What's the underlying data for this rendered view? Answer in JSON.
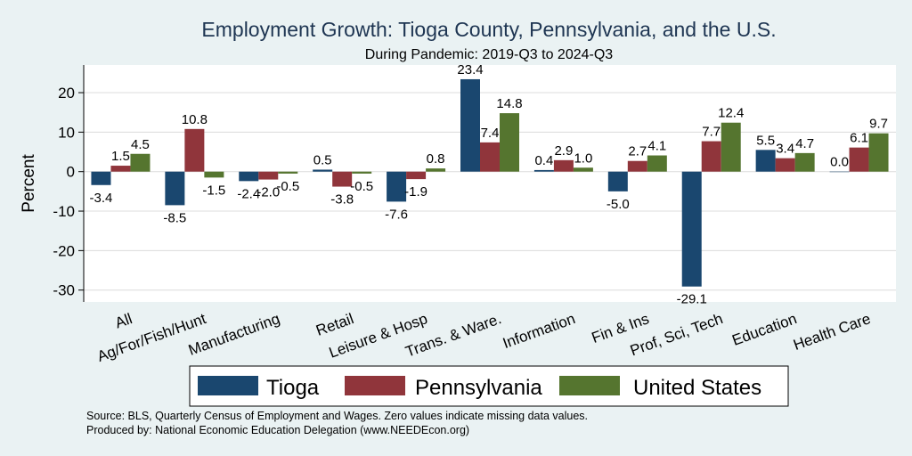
{
  "chart_data": {
    "type": "bar",
    "title": "Employment Growth: Tioga County, Pennsylvania, and the U.S.",
    "subtitle": "During Pandemic: 2019-Q3 to 2024-Q3",
    "ylabel": "Percent",
    "xlabel": "",
    "ylim": [
      -33,
      27
    ],
    "yticks": [
      20,
      10,
      0,
      -10,
      -20,
      -30
    ],
    "grid": true,
    "legend_position": "bottom",
    "categories": [
      "All",
      "Ag/For/Fish/Hunt",
      "Manufacturing",
      "Retail",
      "Leisure & Hosp",
      "Trans. & Ware.",
      "Information",
      "Fin & Ins",
      "Prof, Sci, Tech",
      "Education",
      "Health Care"
    ],
    "series": [
      {
        "name": "Tioga",
        "color": "#1a476f",
        "values": [
          -3.4,
          -8.5,
          -2.4,
          0.5,
          -7.6,
          23.4,
          0.4,
          -5.0,
          -29.1,
          5.5,
          0.0
        ]
      },
      {
        "name": "Pennsylvania",
        "color": "#90353b",
        "values": [
          1.5,
          10.8,
          -2.0,
          -3.8,
          -1.9,
          7.4,
          2.9,
          2.7,
          7.7,
          3.4,
          6.1
        ]
      },
      {
        "name": "United States",
        "color": "#55752f",
        "values": [
          4.5,
          -1.5,
          -0.5,
          -0.5,
          0.8,
          14.8,
          1.0,
          4.1,
          12.4,
          4.7,
          9.7
        ]
      }
    ],
    "notes": [
      "Source: BLS, Quarterly Census of Employment and Wages. Zero values indicate missing data values.",
      "Produced by: National Economic Education Delegation (www.NEEDEcon.org)"
    ]
  }
}
